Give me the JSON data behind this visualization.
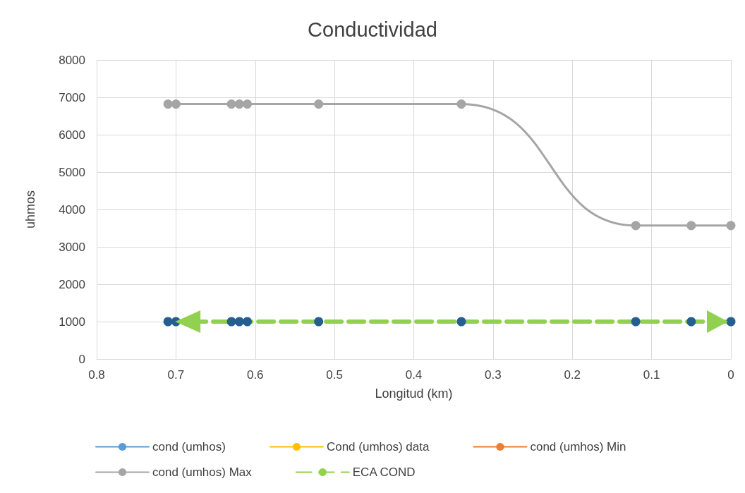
{
  "chart_data": {
    "type": "line",
    "title": "Conductividad",
    "xlabel": "Longitud (km)",
    "ylabel": "uhmos",
    "x": [
      0.71,
      0.7,
      0.63,
      0.62,
      0.61,
      0.52,
      0.34,
      0.12,
      0.05,
      0
    ],
    "xlim": [
      0.8,
      0
    ],
    "xticks": [
      0.8,
      0.7,
      0.6,
      0.5,
      0.4,
      0.3,
      0.2,
      0.1,
      0
    ],
    "ylim": [
      0,
      8000
    ],
    "yticks": [
      0,
      1000,
      2000,
      3000,
      4000,
      5000,
      6000,
      7000,
      8000
    ],
    "grid": true,
    "legend": "bottom",
    "marker": "circle",
    "line_style": "solid",
    "series": [
      {
        "name": "cond (umhos)",
        "color": "#5b9bd5",
        "values": [
          null,
          null,
          null,
          null,
          null,
          null,
          null,
          null,
          null,
          null
        ]
      },
      {
        "name": "Cond (umhos) data",
        "color": "#ffc000",
        "values": [
          null,
          null,
          null,
          null,
          null,
          null,
          null,
          null,
          null,
          null
        ]
      },
      {
        "name": "cond (umhos) Min",
        "color": "#ed7d31",
        "values": [
          null,
          null,
          null,
          null,
          null,
          null,
          null,
          null,
          null,
          null
        ]
      },
      {
        "name": "cond (umhos) Max",
        "color": "#a5a5a5",
        "values": [
          6820,
          6820,
          6820,
          6820,
          6820,
          6820,
          6820,
          3570,
          3570,
          3570
        ]
      },
      {
        "name": "ECA COND",
        "color": "#92d050",
        "line_style": "dashed",
        "colors": [
          "#255e91",
          "#255e91",
          "#255e91",
          "#255e91",
          "#255e91",
          "#255e91",
          "#255e91",
          "#255e91",
          "#255e91",
          "#255e91"
        ],
        "values": [
          1000,
          1000,
          1000,
          1000,
          1000,
          1000,
          1000,
          1000,
          1000,
          1000
        ]
      }
    ]
  }
}
